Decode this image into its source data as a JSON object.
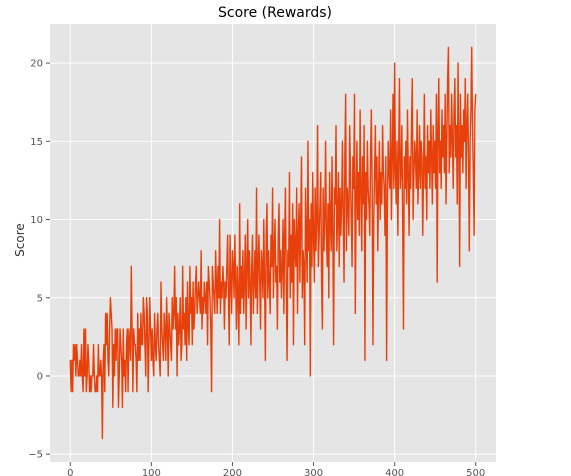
{
  "chart_data": {
    "type": "line",
    "title": "Score (Rewards)",
    "xlabel": "",
    "ylabel": "Score",
    "xlim": [
      -25,
      525
    ],
    "ylim": [
      -5.5,
      22.5
    ],
    "xticks": [
      0,
      100,
      200,
      300,
      400,
      500
    ],
    "yticks": [
      -5,
      0,
      5,
      10,
      15,
      20
    ],
    "grid": true,
    "colors": {
      "background": "#e5e5e5",
      "grid": "#ffffff",
      "line": "#e8400b",
      "ticks": "#555555"
    },
    "series": [
      {
        "values": [
          1,
          -1,
          1,
          -1,
          2,
          1,
          2,
          0,
          2,
          1,
          0,
          0,
          1,
          0,
          2,
          0,
          -1,
          3,
          0,
          3,
          -1,
          0,
          2,
          1,
          -1,
          0,
          -1,
          0,
          0,
          2,
          0,
          -1,
          -1,
          0,
          -1,
          2,
          0,
          0,
          1,
          0,
          -4,
          1,
          2,
          -1,
          4,
          2,
          4,
          1,
          0,
          3,
          5,
          4,
          3,
          -2,
          2,
          0,
          3,
          1,
          3,
          3,
          -2,
          0,
          3,
          2,
          1,
          -2,
          3,
          0,
          1,
          -1,
          2,
          3,
          -1,
          3,
          2,
          1,
          7,
          3,
          -1,
          3,
          2,
          2,
          1,
          -1,
          4,
          1,
          3,
          1,
          4,
          2,
          2,
          5,
          4,
          2,
          0,
          5,
          4,
          -1,
          2,
          5,
          3,
          1,
          3,
          1,
          0,
          4,
          2,
          1,
          3,
          4,
          2,
          1,
          0,
          6,
          3,
          2,
          1,
          4,
          3,
          1,
          5,
          3,
          0,
          4,
          3,
          2,
          1,
          5,
          3,
          4,
          7,
          3,
          5,
          0,
          4,
          2,
          3,
          5,
          1,
          2,
          7,
          3,
          4,
          2,
          5,
          1,
          6,
          3,
          2,
          7,
          4,
          5,
          2,
          6,
          3,
          4,
          6,
          7,
          4,
          5,
          6,
          5,
          4,
          8,
          3,
          5,
          4,
          6,
          5,
          4,
          6,
          2,
          7,
          6,
          5,
          3,
          -1,
          7,
          6,
          5,
          4,
          8,
          6,
          4,
          7,
          5,
          10,
          4,
          6,
          5,
          7,
          6,
          3,
          6,
          5,
          7,
          9,
          5,
          2,
          9,
          6,
          4,
          8,
          7,
          5,
          9,
          6,
          3,
          7,
          5,
          2,
          11,
          4,
          7,
          5,
          8,
          4,
          6,
          9,
          3,
          7,
          10,
          5,
          8,
          6,
          2,
          7,
          9,
          4,
          6,
          8,
          5,
          12,
          4,
          7,
          9,
          6,
          3,
          8,
          7,
          5,
          10,
          6,
          1,
          9,
          11,
          5,
          8,
          6,
          4,
          9,
          7,
          12,
          5,
          8,
          10,
          6,
          7,
          3,
          9,
          11,
          6,
          8,
          5,
          7,
          10,
          4,
          9,
          12,
          6,
          1,
          8,
          7,
          13,
          5,
          9,
          6,
          11,
          2,
          10,
          8,
          7,
          12,
          4,
          9,
          11,
          6,
          10,
          14,
          5,
          8,
          7,
          2,
          12,
          9,
          6,
          15,
          8,
          10,
          0,
          11,
          7,
          13,
          9,
          6,
          12,
          8,
          10,
          16,
          7,
          9,
          11,
          13,
          6,
          3,
          12,
          8,
          10,
          15,
          9,
          7,
          11,
          5,
          13,
          10,
          8,
          14,
          9,
          2,
          12,
          11,
          16,
          8,
          10,
          13,
          7,
          12,
          9,
          11,
          15,
          10,
          6,
          14,
          18,
          8,
          12,
          11,
          9,
          16,
          13,
          10,
          7,
          14,
          12,
          18,
          4,
          11,
          15,
          10,
          13,
          9,
          17,
          12,
          8,
          14,
          11,
          16,
          1,
          13,
          10,
          15,
          12,
          11,
          9,
          14,
          17,
          12,
          2,
          10,
          13,
          16,
          11,
          14,
          8,
          12,
          15,
          10,
          13,
          11,
          16,
          13,
          12,
          9,
          14,
          1,
          11,
          15,
          13,
          12,
          17,
          10,
          14,
          18,
          12,
          20,
          13,
          11,
          15,
          9,
          14,
          19,
          12,
          13,
          16,
          10,
          3,
          14,
          12,
          15,
          11,
          17,
          13,
          9,
          14,
          12,
          16,
          19,
          10,
          13,
          15,
          14,
          12,
          17,
          11,
          13,
          16,
          12,
          15,
          14,
          9,
          13,
          18,
          12,
          14,
          10,
          16,
          13,
          15,
          12,
          17,
          14,
          11,
          16,
          13,
          15,
          12,
          18,
          6,
          16,
          19,
          13,
          15,
          12,
          17,
          14,
          16,
          13,
          18,
          11,
          15,
          19,
          21,
          13,
          16,
          14,
          18,
          15,
          12,
          17,
          19,
          14,
          16,
          11,
          20,
          15,
          7,
          18,
          14,
          16,
          13,
          17,
          15,
          19,
          12,
          16,
          18,
          14,
          8,
          15,
          17,
          21,
          16,
          13,
          9,
          17,
          18
        ],
        "color": "#e8400b"
      }
    ]
  }
}
